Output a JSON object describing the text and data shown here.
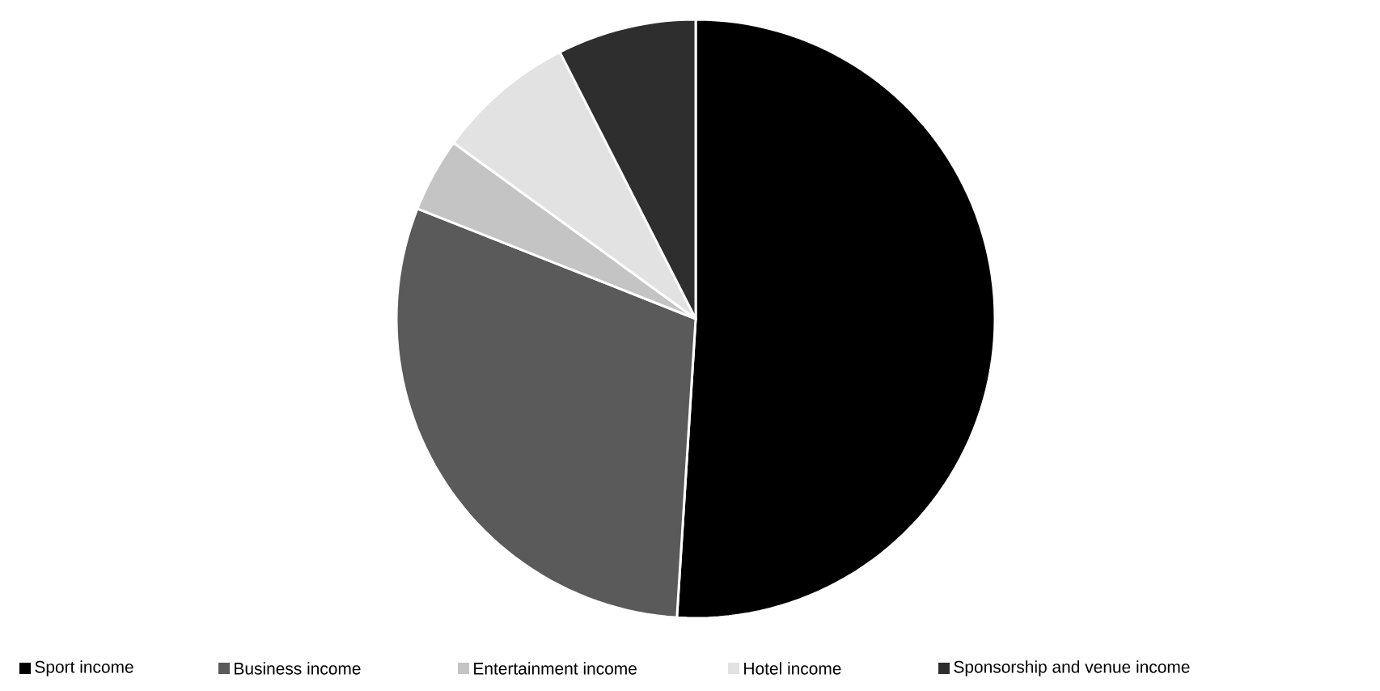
{
  "chart_data": {
    "type": "pie",
    "categories": [
      "Sport income",
      "Business income",
      "Entertainment income",
      "Hotel income",
      "Sponsorship and venue income"
    ],
    "values": [
      51,
      30,
      4,
      7.5,
      7.5
    ],
    "colors": [
      "#000000",
      "#5a5a5a",
      "#c4c4c4",
      "#e2e2e2",
      "#2e2e2e"
    ],
    "legend": "bottom"
  }
}
